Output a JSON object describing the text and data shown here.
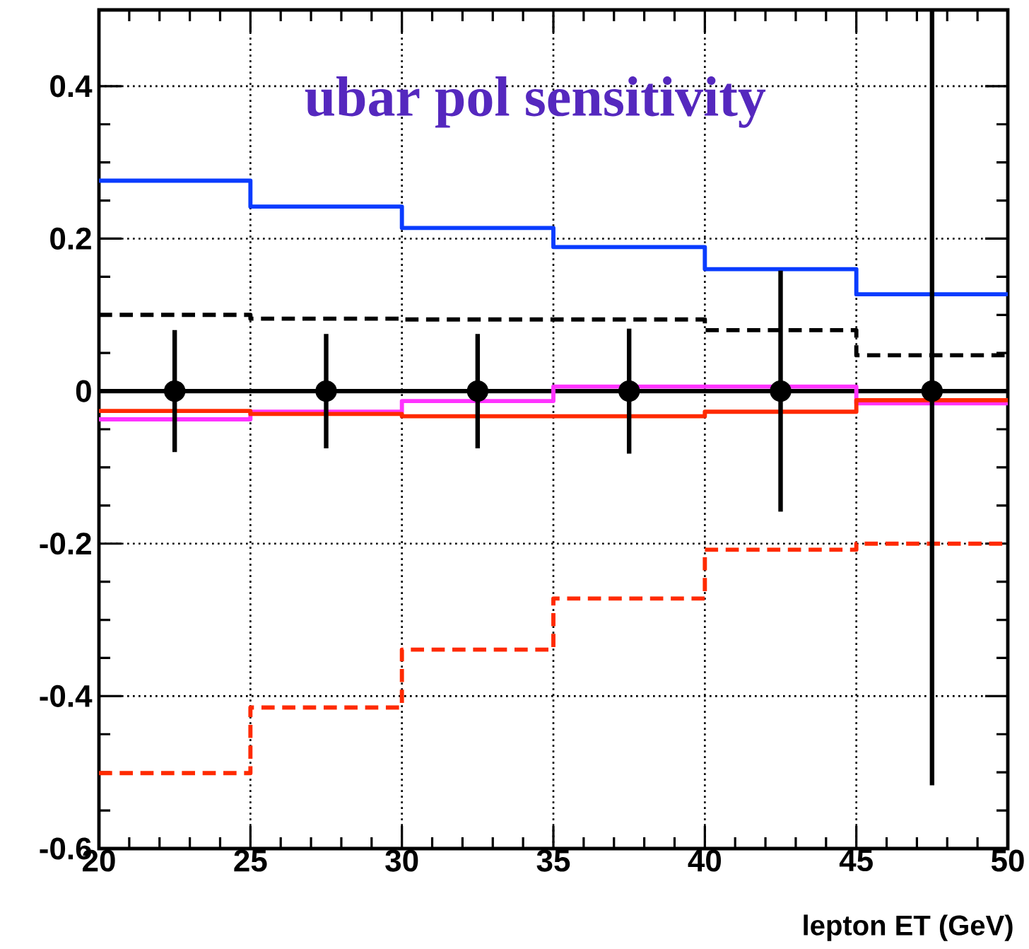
{
  "chart_data": {
    "type": "step",
    "title": "ubar pol sensitivity",
    "xlabel": "lepton ET (GeV)",
    "xlim": [
      20,
      50
    ],
    "ylim": [
      -0.6,
      0.5
    ],
    "xticks": [
      20,
      25,
      30,
      35,
      40,
      45,
      50
    ],
    "yticks": [
      {
        "value": -0.6,
        "label": "-0.6"
      },
      {
        "value": -0.4,
        "label": "-0.4"
      },
      {
        "value": -0.2,
        "label": "-0.2"
      },
      0,
      {
        "value": 0.2,
        "label": "0.2"
      },
      {
        "value": 0.4,
        "label": "0.4"
      }
    ],
    "grid": true,
    "ref_lines": [
      {
        "axis": "y",
        "value": 0,
        "color": "#000000",
        "line_style": "solid"
      }
    ],
    "series": [
      {
        "type": "step",
        "color": "#0a3cff",
        "line_style": "solid",
        "x": [
          20,
          25,
          30,
          35,
          40,
          45,
          50
        ],
        "values": [
          0.276,
          0.242,
          0.214,
          0.189,
          0.16,
          0.127,
          0.127
        ]
      },
      {
        "type": "step",
        "color": "#000000",
        "line_style": "dashed",
        "x": [
          20,
          25,
          30,
          35,
          40,
          45,
          50
        ],
        "values": [
          0.1,
          0.095,
          0.094,
          0.094,
          0.08,
          0.047,
          0.047
        ]
      },
      {
        "type": "step",
        "color": "#ff33ff",
        "line_style": "solid",
        "x": [
          20,
          25,
          30,
          35,
          40,
          45,
          50
        ],
        "values": [
          -0.037,
          -0.027,
          -0.013,
          0.006,
          0.006,
          -0.016,
          -0.016
        ]
      },
      {
        "type": "step",
        "color": "#ff2a00",
        "line_style": "solid",
        "x": [
          20,
          25,
          30,
          35,
          40,
          45,
          50
        ],
        "values": [
          -0.026,
          -0.03,
          -0.033,
          -0.033,
          -0.027,
          -0.012,
          -0.012
        ]
      },
      {
        "type": "step",
        "color": "#ff2a00",
        "line_style": "dashed",
        "x": [
          20,
          25,
          30,
          35,
          40,
          45,
          50
        ],
        "values": [
          -0.501,
          -0.415,
          -0.339,
          -0.272,
          -0.208,
          -0.2,
          -0.2
        ]
      },
      {
        "type": "scatter",
        "color": "#000000",
        "marker": "circle",
        "x": [
          22.5,
          27.5,
          32.5,
          37.5,
          42.5,
          47.5
        ],
        "values": [
          0,
          0,
          0,
          0,
          0,
          0
        ],
        "errors": [
          0.08,
          0.075,
          0.075,
          0.082,
          0.158,
          [
            -0.517,
            0.5
          ]
        ]
      }
    ]
  }
}
